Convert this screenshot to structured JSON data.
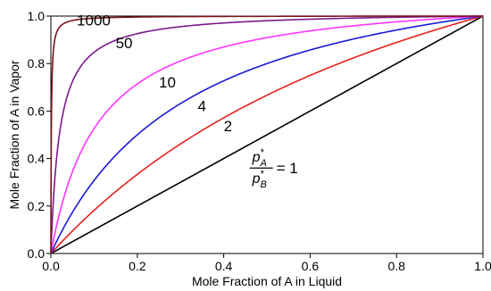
{
  "chart_data": {
    "type": "line",
    "xlabel": "Mole Fraction of A in Liquid",
    "ylabel": "Mole Fraction of A in Vapor",
    "xlim": [
      0,
      1
    ],
    "ylim": [
      0,
      1
    ],
    "x_ticks": [
      "0.0",
      "0.2",
      "0.4",
      "0.6",
      "0.8",
      "1.0"
    ],
    "y_ticks": [
      "0.0",
      "0.2",
      "0.4",
      "0.6",
      "0.8",
      "1.0"
    ],
    "grid": false,
    "series": [
      {
        "name": "1",
        "ratio": 1,
        "color": "#000000"
      },
      {
        "name": "2",
        "ratio": 2,
        "color": "#e8211d"
      },
      {
        "name": "4",
        "ratio": 4,
        "color": "#1a1ad6"
      },
      {
        "name": "10",
        "ratio": 10,
        "color": "#ff33ff"
      },
      {
        "name": "50",
        "ratio": 50,
        "color": "#7a1a8c"
      },
      {
        "name": "1000",
        "ratio": 1000,
        "color": "#7a1418"
      }
    ],
    "curve_labels": [
      {
        "text": "1000",
        "x": 0.06,
        "y": 0.96
      },
      {
        "text": "50",
        "x": 0.15,
        "y": 0.865
      },
      {
        "text": "10",
        "x": 0.25,
        "y": 0.7
      },
      {
        "text": "4",
        "x": 0.34,
        "y": 0.6
      },
      {
        "text": "2",
        "x": 0.4,
        "y": 0.515
      }
    ],
    "ratio_annotation": {
      "numerator_var": "p",
      "numerator_sub": "A",
      "denominator_var": "p",
      "denominator_sub": "B",
      "star": "*",
      "equals": "= 1",
      "x": 0.46,
      "y": 0.36
    }
  }
}
